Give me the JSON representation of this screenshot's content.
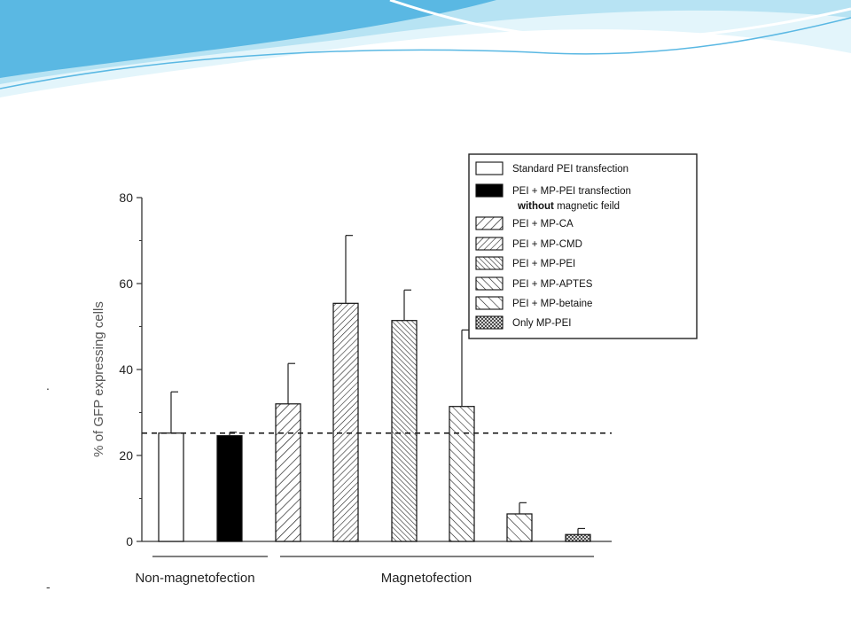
{
  "slide": {
    "accent_colors": [
      "#5ab8e3",
      "#b7e3f3",
      "#e3f5fb"
    ],
    "stray_marks": [
      ".",
      "-"
    ]
  },
  "chart_data": {
    "type": "bar",
    "title": "",
    "xlabel": "",
    "ylabel": "% of GFP expressing cells",
    "ylim": [
      0,
      80
    ],
    "yticks": [
      0,
      20,
      40,
      60,
      80
    ],
    "reference_line": 25.2,
    "grid": false,
    "legend_position": "top-right",
    "bars": [
      {
        "name": "Standard PEI transfection",
        "value": 25.2,
        "error": 9.6,
        "pattern": "white"
      },
      {
        "name": "PEI + MP-PEI transfection without magnetic feild",
        "value": 24.6,
        "error": 0.8,
        "pattern": "black"
      },
      {
        "name": "PEI + MP-CA",
        "value": 32.0,
        "error": 9.4,
        "pattern": "diag-forward"
      },
      {
        "name": "PEI + MP-CMD",
        "value": 55.4,
        "error": 15.8,
        "pattern": "diag-forward-dense"
      },
      {
        "name": "PEI + MP-PEI",
        "value": 51.4,
        "error": 7.1,
        "pattern": "diag-back-dense"
      },
      {
        "name": "PEI + MP-APTES",
        "value": 31.4,
        "error": 17.8,
        "pattern": "diag-back"
      },
      {
        "name": "PEI + MP-betaine",
        "value": 6.4,
        "error": 2.6,
        "pattern": "diag-back-sparse"
      },
      {
        "name": "Only MP-PEI",
        "value": 1.6,
        "error": 1.4,
        "pattern": "crosshatch"
      }
    ],
    "groups": [
      {
        "label": "Non-magnetofection",
        "bars": [
          0,
          1
        ]
      },
      {
        "label": "Magnetofection",
        "bars": [
          2,
          3,
          4,
          5,
          6,
          7
        ]
      }
    ],
    "legend": [
      {
        "label": "Standard PEI transfection",
        "pattern": "white"
      },
      {
        "label": "PEI + MP-PEI transfection",
        "label_bold": "without",
        "label_rest": " magnetic feild",
        "pattern": "black"
      },
      {
        "label": "PEI + MP-CA",
        "pattern": "diag-forward"
      },
      {
        "label": "PEI + MP-CMD",
        "pattern": "diag-forward-dense"
      },
      {
        "label": "PEI + MP-PEI",
        "pattern": "diag-back-dense"
      },
      {
        "label": "PEI + MP-APTES",
        "pattern": "diag-back"
      },
      {
        "label": "PEI + MP-betaine",
        "pattern": "diag-back-sparse"
      },
      {
        "label": "Only MP-PEI",
        "pattern": "crosshatch"
      }
    ]
  }
}
